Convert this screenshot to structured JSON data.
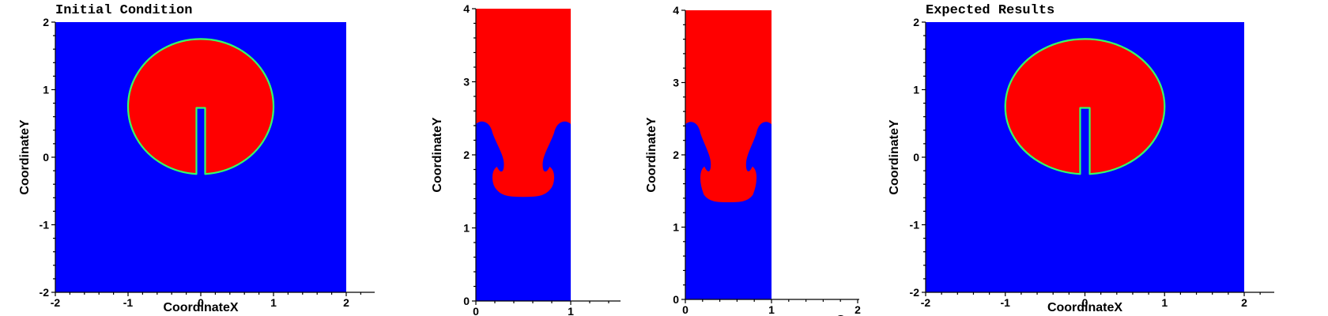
{
  "colors": {
    "fluid_blue": "#0000ff",
    "fluid_red": "#ff0000",
    "interface": "#33ff66",
    "axis": "#000000",
    "background": "#ffffff"
  },
  "chart_data": [
    {
      "type": "heatmap",
      "title": "Initial Condition",
      "xlabel": "CoordinateX",
      "ylabel": "CoordinateY",
      "xlim": [
        -2,
        2
      ],
      "ylim": [
        -2,
        2
      ],
      "xticks": [
        "-2",
        "-1",
        "0",
        "1",
        "2"
      ],
      "yticks": [
        "-2",
        "-1",
        "0",
        "1",
        "2"
      ],
      "field": "slotted-disk",
      "disk": {
        "cx": 0,
        "cy": 0.75,
        "r": 1.0
      },
      "slot": {
        "x0": -0.06,
        "x1": 0.06,
        "y_top": 0.73
      },
      "grid": false
    },
    {
      "type": "heatmap",
      "title": "",
      "xlabel": "",
      "ylabel": "CoordinateY",
      "xlim": [
        0,
        1
      ],
      "ylim": [
        0,
        4
      ],
      "xticks": [
        "0",
        "1"
      ],
      "yticks": [
        "0",
        "1",
        "2",
        "3",
        "4"
      ],
      "field": "rayleigh-taylor",
      "interface_peak_y": 2.45,
      "spike_tip_y": 1.43,
      "grid": false
    },
    {
      "type": "heatmap",
      "title": "",
      "xlabel": "Coo",
      "ylabel": "CoordinateY",
      "xlim": [
        0,
        1
      ],
      "ylim": [
        0,
        4
      ],
      "xticks": [
        "0",
        "1",
        "2"
      ],
      "yticks": [
        "0",
        "1",
        "2",
        "3",
        "4"
      ],
      "field": "rayleigh-taylor",
      "interface_peak_y": 2.45,
      "spike_tip_y": 1.35,
      "grid": false
    },
    {
      "type": "heatmap",
      "title": "Expected Results",
      "xlabel": "CoordinateX",
      "ylabel": "CoordinateY",
      "xlim": [
        -2,
        2
      ],
      "ylim": [
        -2,
        2
      ],
      "xticks": [
        "-2",
        "-1",
        "0",
        "1",
        "2"
      ],
      "yticks": [
        "-2",
        "-1",
        "0",
        "1",
        "2"
      ],
      "field": "slotted-disk",
      "disk": {
        "cx": 0,
        "cy": 0.75,
        "r": 1.0
      },
      "slot": {
        "x0": -0.06,
        "x1": 0.06,
        "y_top": 0.73
      },
      "grid": false
    }
  ]
}
